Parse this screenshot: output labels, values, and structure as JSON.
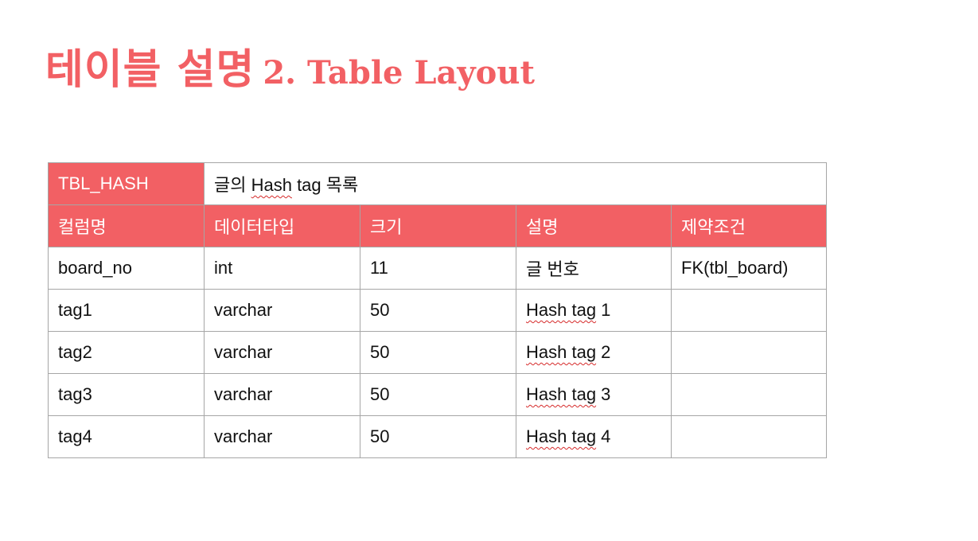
{
  "title": {
    "korean": "테이블 설명",
    "english": "2. Table Layout"
  },
  "table": {
    "name": "TBL_HASH",
    "description_pre": "글의 ",
    "description_mark": "Hash",
    "description_post": " tag 목록",
    "headers": [
      "컬럼명",
      "데이터타입",
      "크기",
      "설명",
      "제약조건"
    ],
    "rows": [
      {
        "column": "board_no",
        "type": "int",
        "size": "11",
        "desc_mark": "",
        "desc_rest": "글 번호",
        "constraint": "FK(tbl_board)"
      },
      {
        "column": "tag1",
        "type": "varchar",
        "size": "50",
        "desc_mark": "Hash tag",
        "desc_rest": " 1",
        "constraint": ""
      },
      {
        "column": "tag2",
        "type": "varchar",
        "size": "50",
        "desc_mark": "Hash tag",
        "desc_rest": " 2",
        "constraint": ""
      },
      {
        "column": "tag3",
        "type": "varchar",
        "size": "50",
        "desc_mark": "Hash tag",
        "desc_rest": " 3",
        "constraint": ""
      },
      {
        "column": "tag4",
        "type": "varchar",
        "size": "50",
        "desc_mark": "Hash tag",
        "desc_rest": " 4",
        "constraint": ""
      }
    ]
  },
  "colors": {
    "accent": "#f26064",
    "border": "#a6a6a6",
    "spellcheck": "#d62b2b"
  }
}
